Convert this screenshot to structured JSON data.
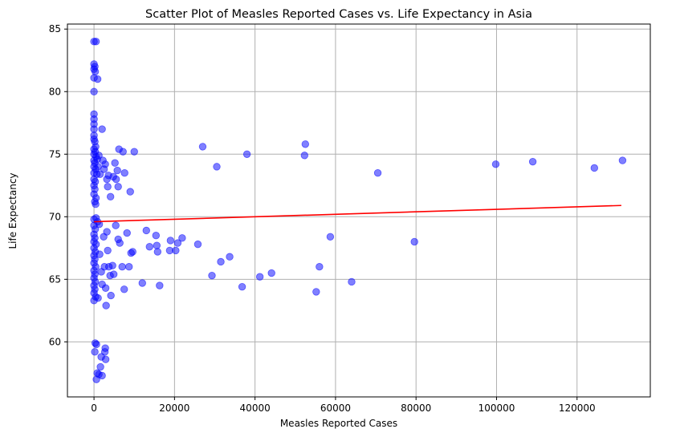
{
  "chart_data": {
    "type": "scatter",
    "title": "Scatter Plot of Measles Reported Cases vs. Life Expectancy in Asia",
    "xlabel": "Measles Reported Cases",
    "ylabel": "Life Expectancy",
    "xlim": [
      -6600,
      138200
    ],
    "ylim": [
      55.6,
      85.4
    ],
    "xticks": [
      0,
      20000,
      40000,
      60000,
      80000,
      100000,
      120000
    ],
    "xtick_labels": [
      "0",
      "20000",
      "40000",
      "60000",
      "80000",
      "100000",
      "120000"
    ],
    "yticks": [
      60,
      65,
      70,
      75,
      80,
      85
    ],
    "ytick_labels": [
      "60",
      "65",
      "70",
      "75",
      "80",
      "85"
    ],
    "grid": true,
    "colors": {
      "points": "#0000ff",
      "trend": "#ff0000",
      "grid": "#b0b0b0"
    },
    "trend_line": {
      "x": [
        0,
        131000
      ],
      "y": [
        69.6,
        70.9
      ]
    },
    "points": [
      [
        0,
        84.0
      ],
      [
        500,
        84.0
      ],
      [
        0,
        82.2
      ],
      [
        200,
        82.0
      ],
      [
        0,
        81.8
      ],
      [
        300,
        81.6
      ],
      [
        0,
        81.1
      ],
      [
        900,
        81.0
      ],
      [
        0,
        80.0
      ],
      [
        0,
        78.2
      ],
      [
        0,
        77.8
      ],
      [
        0,
        77.4
      ],
      [
        0,
        77.0
      ],
      [
        0,
        76.5
      ],
      [
        0,
        76.2
      ],
      [
        200,
        76.0
      ],
      [
        2000,
        77.0
      ],
      [
        400,
        75.6
      ],
      [
        0,
        75.4
      ],
      [
        300,
        75.2
      ],
      [
        0,
        75.0
      ],
      [
        500,
        74.8
      ],
      [
        800,
        74.6
      ],
      [
        1200,
        74.9
      ],
      [
        0,
        74.5
      ],
      [
        200,
        74.3
      ],
      [
        0,
        74.0
      ],
      [
        400,
        73.8
      ],
      [
        0,
        73.5
      ],
      [
        700,
        73.4
      ],
      [
        1000,
        74.0
      ],
      [
        1500,
        73.4
      ],
      [
        0,
        73.0
      ],
      [
        300,
        72.8
      ],
      [
        0,
        72.5
      ],
      [
        200,
        72.2
      ],
      [
        0,
        71.8
      ],
      [
        500,
        71.5
      ],
      [
        200,
        71.2
      ],
      [
        400,
        71.0
      ],
      [
        2200,
        74.5
      ],
      [
        2800,
        74.2
      ],
      [
        2500,
        73.8
      ],
      [
        3200,
        73.0
      ],
      [
        3600,
        73.3
      ],
      [
        3400,
        72.4
      ],
      [
        4100,
        71.6
      ],
      [
        4800,
        73.2
      ],
      [
        5200,
        74.3
      ],
      [
        5500,
        73.0
      ],
      [
        5800,
        73.7
      ],
      [
        6000,
        72.4
      ],
      [
        6200,
        75.4
      ],
      [
        7200,
        75.2
      ],
      [
        7600,
        73.5
      ],
      [
        9000,
        72.0
      ],
      [
        10000,
        75.2
      ],
      [
        27000,
        75.6
      ],
      [
        30500,
        74.0
      ],
      [
        38000,
        75.0
      ],
      [
        52500,
        75.8
      ],
      [
        52300,
        74.9
      ],
      [
        70500,
        73.5
      ],
      [
        99800,
        74.2
      ],
      [
        109000,
        74.4
      ],
      [
        124300,
        73.9
      ],
      [
        131300,
        74.5
      ],
      [
        0,
        69.8
      ],
      [
        500,
        69.9
      ],
      [
        900,
        69.6
      ],
      [
        1300,
        69.4
      ],
      [
        0,
        69.3
      ],
      [
        300,
        69.0
      ],
      [
        0,
        68.6
      ],
      [
        200,
        68.3
      ],
      [
        0,
        68.0
      ],
      [
        500,
        67.8
      ],
      [
        0,
        67.5
      ],
      [
        300,
        67.2
      ],
      [
        0,
        66.9
      ],
      [
        200,
        66.6
      ],
      [
        0,
        66.3
      ],
      [
        400,
        66.0
      ],
      [
        0,
        65.7
      ],
      [
        200,
        65.4
      ],
      [
        0,
        65.1
      ],
      [
        300,
        64.8
      ],
      [
        0,
        64.5
      ],
      [
        200,
        64.2
      ],
      [
        0,
        63.9
      ],
      [
        400,
        63.6
      ],
      [
        0,
        63.3
      ],
      [
        1000,
        63.5
      ],
      [
        1400,
        67.0
      ],
      [
        1800,
        65.6
      ],
      [
        2000,
        64.6
      ],
      [
        2400,
        68.4
      ],
      [
        2600,
        66.0
      ],
      [
        2900,
        64.3
      ],
      [
        3000,
        62.9
      ],
      [
        3200,
        68.8
      ],
      [
        3400,
        67.3
      ],
      [
        3700,
        66.0
      ],
      [
        4000,
        65.3
      ],
      [
        4200,
        63.7
      ],
      [
        4600,
        66.1
      ],
      [
        4900,
        65.4
      ],
      [
        5400,
        69.3
      ],
      [
        6000,
        68.2
      ],
      [
        6400,
        67.9
      ],
      [
        7000,
        66.0
      ],
      [
        7500,
        64.2
      ],
      [
        8200,
        68.7
      ],
      [
        8700,
        66.0
      ],
      [
        9200,
        67.1
      ],
      [
        9600,
        67.2
      ],
      [
        12000,
        64.7
      ],
      [
        13000,
        68.9
      ],
      [
        13800,
        67.6
      ],
      [
        15400,
        68.5
      ],
      [
        15600,
        67.7
      ],
      [
        15800,
        67.2
      ],
      [
        16300,
        64.5
      ],
      [
        18800,
        67.3
      ],
      [
        19000,
        68.1
      ],
      [
        20300,
        67.3
      ],
      [
        20800,
        67.9
      ],
      [
        21900,
        68.3
      ],
      [
        25800,
        67.8
      ],
      [
        29300,
        65.3
      ],
      [
        31500,
        66.4
      ],
      [
        33700,
        66.8
      ],
      [
        36800,
        64.4
      ],
      [
        41200,
        65.2
      ],
      [
        44100,
        65.5
      ],
      [
        55200,
        64.0
      ],
      [
        56000,
        66.0
      ],
      [
        58700,
        68.4
      ],
      [
        64000,
        64.8
      ],
      [
        79600,
        68.0
      ],
      [
        300,
        59.9
      ],
      [
        600,
        59.8
      ],
      [
        200,
        59.2
      ],
      [
        1800,
        58.8
      ],
      [
        2800,
        59.5
      ],
      [
        2700,
        59.2
      ],
      [
        2900,
        58.6
      ],
      [
        1600,
        58.0
      ],
      [
        800,
        57.5
      ],
      [
        1200,
        57.4
      ],
      [
        2000,
        57.3
      ],
      [
        600,
        57.0
      ]
    ]
  }
}
